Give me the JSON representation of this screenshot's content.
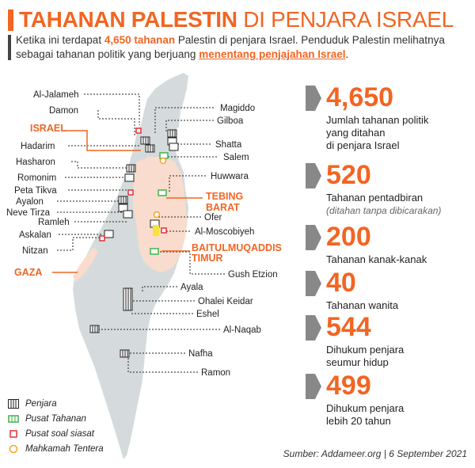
{
  "title": {
    "bold": "TAHANAN PALESTIN",
    "light": "DI PENJARA ISRAEL"
  },
  "intro": {
    "part1": "Ketika ini terdapat ",
    "hl1": "4,650 tahanan",
    "part2": " Palestin di penjara Israel. Penduduk Palestin melihatnya sebagai tahanan politik yang berjuang ",
    "hl2": "menentang penjajahan Israel",
    "part3": "."
  },
  "regions": {
    "israel": "ISRAEL",
    "tebing": "TEBING",
    "barat": "BARAT",
    "baitul": "BAITULMUQADDIS",
    "timur": "TIMUR",
    "gaza": "GAZA"
  },
  "left_labels": [
    "Al-Jalameh",
    "Damon",
    "Hadarim",
    "Hasharon",
    "Romonim",
    "Peta Tikva",
    "Ayalon",
    "Neve Tirza",
    "Ramleh",
    "Askalan",
    "Nitzan"
  ],
  "right_labels": [
    "Magiddo",
    "Gilboa",
    "Shatta",
    "Salem",
    "Huwwara",
    "Ofer",
    "Al-Moscobiyeh",
    "Gush Etzion",
    "Ayala",
    "Ohalei Keidar",
    "Eshel",
    "Al-Naqab",
    "Nafha",
    "Ramon"
  ],
  "stats": [
    {
      "value": "4,650",
      "desc": [
        "Jumlah tahanan politik",
        "yang ditahan",
        "di penjara Israel"
      ],
      "sub": ""
    },
    {
      "value": "520",
      "desc": [
        "Tahanan pentadbiran"
      ],
      "sub": "(ditahan tanpa dibicarakan)"
    },
    {
      "value": "200",
      "desc": [
        "Tahanan kanak-kanak"
      ],
      "sub": ""
    },
    {
      "value": "40",
      "desc": [
        "Tahanan wanita"
      ],
      "sub": ""
    },
    {
      "value": "544",
      "desc": [
        "Dihukum penjara",
        "seumur hidup"
      ],
      "sub": ""
    },
    {
      "value": "499",
      "desc": [
        "Dihukum penjara",
        "lebih 20 tahun"
      ],
      "sub": ""
    }
  ],
  "legend": [
    {
      "label": "Penjara",
      "icon": "prison-icon"
    },
    {
      "label": "Pusat Tahanan",
      "icon": "detention-icon"
    },
    {
      "label": "Pusat soal siasat",
      "icon": "interrogation-icon"
    },
    {
      "label": "Mahkamah Tentera",
      "icon": "military-court-icon"
    }
  ],
  "colors": {
    "accent": "#f26522",
    "map": "#d5dbdc",
    "westbank": "#f9dccd",
    "prison": "#555555",
    "detention": "#3db54a",
    "interrogation": "#e0303a",
    "court": "#f5a623"
  },
  "source": "Sumber: Addameer.org | 6 September 2021"
}
